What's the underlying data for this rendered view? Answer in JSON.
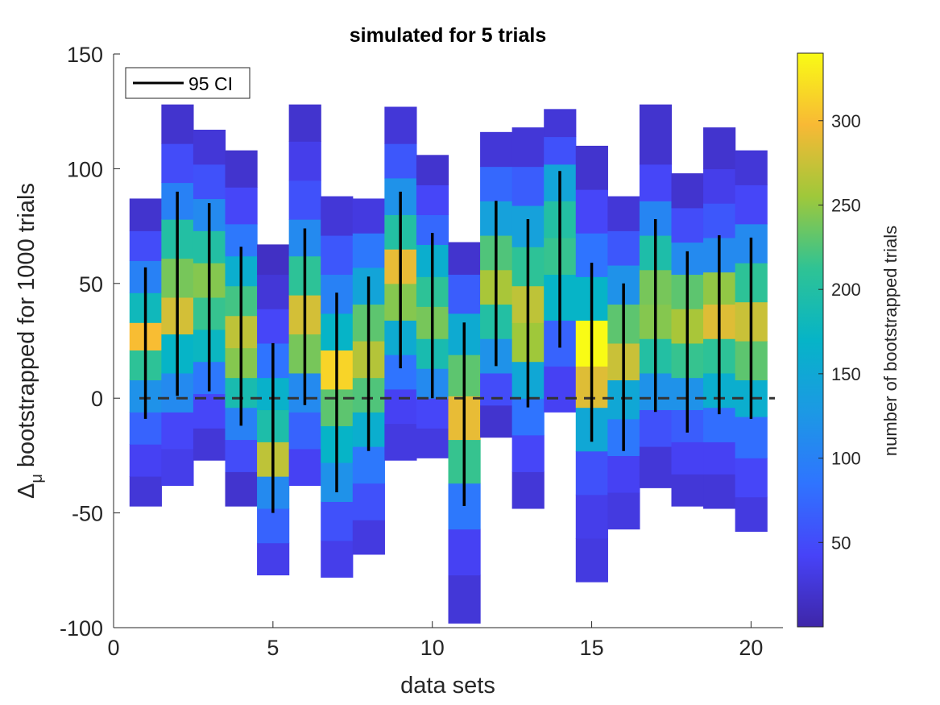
{
  "chart_data": {
    "type": "heatmap",
    "title": "simulated for 5 trials",
    "xlabel": "data sets",
    "ylabel_symbol": "Δ",
    "ylabel_subscript": "μ",
    "ylabel_text": "bootstrapped  for 1000 trials",
    "colorbar_label": "number of bootstrapped trials",
    "xlim": [
      0,
      21
    ],
    "ylim": [
      -100,
      150
    ],
    "xticks": [
      0,
      5,
      10,
      15,
      20
    ],
    "yticks": [
      -100,
      -50,
      0,
      50,
      100,
      150
    ],
    "colorbar_range": [
      0,
      340
    ],
    "colorbar_ticks": [
      50,
      100,
      150,
      200,
      250,
      300
    ],
    "legend": {
      "label": "95 CI",
      "location": "top-left"
    },
    "reference_line": {
      "y": 0,
      "style": "dashed"
    },
    "bar_width": 1,
    "datasets": [
      {
        "x": 1,
        "bins": [
          [
            -47,
            -34,
            25
          ],
          [
            -34,
            -20,
            40
          ],
          [
            -20,
            -6,
            70
          ],
          [
            -6,
            8,
            120
          ],
          [
            8,
            21,
            210
          ],
          [
            21,
            33,
            300
          ],
          [
            33,
            46,
            180
          ],
          [
            46,
            60,
            100
          ],
          [
            60,
            73,
            50
          ],
          [
            73,
            87,
            20
          ]
        ],
        "ci": [
          -9,
          57
        ]
      },
      {
        "x": 2,
        "bins": [
          [
            -38,
            -22,
            35
          ],
          [
            -22,
            -6,
            45
          ],
          [
            -6,
            11,
            110
          ],
          [
            11,
            28,
            170
          ],
          [
            28,
            44,
            280
          ],
          [
            44,
            61,
            240
          ],
          [
            61,
            78,
            200
          ],
          [
            78,
            94,
            100
          ],
          [
            94,
            111,
            50
          ],
          [
            111,
            128,
            20
          ]
        ],
        "ci": [
          1,
          90
        ]
      },
      {
        "x": 3,
        "bins": [
          [
            -27,
            -13,
            25
          ],
          [
            -13,
            2,
            45
          ],
          [
            2,
            16,
            90
          ],
          [
            16,
            30,
            175
          ],
          [
            30,
            44,
            215
          ],
          [
            44,
            59,
            245
          ],
          [
            59,
            73,
            200
          ],
          [
            73,
            87,
            110
          ],
          [
            87,
            102,
            55
          ],
          [
            102,
            117,
            25
          ]
        ],
        "ci": [
          3,
          85
        ]
      },
      {
        "x": 4,
        "bins": [
          [
            -47,
            -32,
            20
          ],
          [
            -32,
            -18,
            50
          ],
          [
            -18,
            -4,
            100
          ],
          [
            -4,
            9,
            190
          ],
          [
            9,
            22,
            245
          ],
          [
            22,
            36,
            270
          ],
          [
            36,
            49,
            220
          ],
          [
            49,
            62,
            160
          ],
          [
            62,
            76,
            90
          ],
          [
            76,
            92,
            45
          ],
          [
            92,
            108,
            20
          ]
        ],
        "ci": [
          -12,
          66
        ]
      },
      {
        "x": 5,
        "bins": [
          [
            -77,
            -63,
            35
          ],
          [
            -63,
            -48,
            70
          ],
          [
            -48,
            -34,
            110
          ],
          [
            -34,
            -19,
            270
          ],
          [
            -19,
            -5,
            195
          ],
          [
            -5,
            9,
            165
          ],
          [
            9,
            24,
            85
          ],
          [
            24,
            39,
            45
          ],
          [
            39,
            54,
            25
          ],
          [
            54,
            67,
            15
          ]
        ],
        "ci": [
          -50,
          24
        ]
      },
      {
        "x": 6,
        "bins": [
          [
            -38,
            -22,
            40
          ],
          [
            -22,
            -6,
            70
          ],
          [
            -6,
            11,
            110
          ],
          [
            11,
            28,
            240
          ],
          [
            28,
            45,
            280
          ],
          [
            45,
            62,
            210
          ],
          [
            62,
            78,
            110
          ],
          [
            78,
            95,
            55
          ],
          [
            95,
            112,
            35
          ],
          [
            112,
            128,
            20
          ]
        ],
        "ci": [
          -3,
          74
        ]
      },
      {
        "x": 7,
        "bins": [
          [
            -78,
            -62,
            35
          ],
          [
            -62,
            -45,
            55
          ],
          [
            -45,
            -28,
            120
          ],
          [
            -28,
            -12,
            170
          ],
          [
            -12,
            4,
            230
          ],
          [
            4,
            21,
            315
          ],
          [
            21,
            37,
            170
          ],
          [
            37,
            54,
            100
          ],
          [
            54,
            71,
            60
          ],
          [
            71,
            88,
            25
          ]
        ],
        "ci": [
          -41,
          46
        ]
      },
      {
        "x": 8,
        "bins": [
          [
            -68,
            -53,
            30
          ],
          [
            -53,
            -37,
            55
          ],
          [
            -37,
            -21,
            90
          ],
          [
            -21,
            -6,
            160
          ],
          [
            -6,
            9,
            225
          ],
          [
            9,
            25,
            265
          ],
          [
            25,
            41,
            230
          ],
          [
            41,
            57,
            145
          ],
          [
            57,
            72,
            90
          ],
          [
            72,
            87,
            30
          ]
        ],
        "ci": [
          -23,
          53
        ]
      },
      {
        "x": 9,
        "bins": [
          [
            -27,
            -11,
            30
          ],
          [
            -11,
            4,
            40
          ],
          [
            4,
            19,
            85
          ],
          [
            19,
            34,
            155
          ],
          [
            34,
            50,
            245
          ],
          [
            50,
            65,
            290
          ],
          [
            65,
            80,
            200
          ],
          [
            80,
            96,
            120
          ],
          [
            96,
            111,
            60
          ],
          [
            111,
            127,
            25
          ]
        ],
        "ci": [
          13,
          90
        ]
      },
      {
        "x": 10,
        "bins": [
          [
            -26,
            -13,
            30
          ],
          [
            -13,
            0,
            45
          ],
          [
            0,
            13,
            110
          ],
          [
            13,
            26,
            190
          ],
          [
            26,
            40,
            240
          ],
          [
            40,
            53,
            210
          ],
          [
            53,
            67,
            160
          ],
          [
            67,
            80,
            75
          ],
          [
            80,
            93,
            45
          ],
          [
            93,
            106,
            20
          ]
        ],
        "ci": [
          0,
          72
        ]
      },
      {
        "x": 11,
        "bins": [
          [
            -98,
            -77,
            25
          ],
          [
            -77,
            -57,
            40
          ],
          [
            -57,
            -37,
            90
          ],
          [
            -37,
            -18,
            215
          ],
          [
            -18,
            1,
            290
          ],
          [
            1,
            19,
            230
          ],
          [
            19,
            37,
            155
          ],
          [
            37,
            54,
            65
          ],
          [
            54,
            68,
            20
          ]
        ],
        "ci": [
          -47,
          33
        ]
      },
      {
        "x": 12,
        "bins": [
          [
            -17,
            -3,
            20
          ],
          [
            -3,
            11,
            50
          ],
          [
            11,
            26,
            120
          ],
          [
            26,
            41,
            200
          ],
          [
            41,
            56,
            260
          ],
          [
            56,
            71,
            225
          ],
          [
            71,
            86,
            140
          ],
          [
            86,
            101,
            75
          ],
          [
            101,
            116,
            25
          ]
        ],
        "ci": [
          14,
          86
        ]
      },
      {
        "x": 13,
        "bins": [
          [
            -48,
            -32,
            25
          ],
          [
            -32,
            -16,
            45
          ],
          [
            -16,
            0,
            85
          ],
          [
            0,
            16,
            150
          ],
          [
            16,
            33,
            255
          ],
          [
            33,
            49,
            270
          ],
          [
            49,
            66,
            210
          ],
          [
            66,
            84,
            140
          ],
          [
            84,
            101,
            65
          ],
          [
            101,
            118,
            25
          ]
        ],
        "ci": [
          -4,
          78
        ]
      },
      {
        "x": 14,
        "bins": [
          [
            -6,
            14,
            40
          ],
          [
            14,
            34,
            70
          ],
          [
            34,
            54,
            170
          ],
          [
            54,
            70,
            215
          ],
          [
            70,
            86,
            200
          ],
          [
            86,
            102,
            145
          ],
          [
            102,
            114,
            55
          ],
          [
            114,
            126,
            25
          ]
        ],
        "ci": [
          22,
          99
        ]
      },
      {
        "x": 15,
        "bins": [
          [
            -80,
            -61,
            30
          ],
          [
            -61,
            -42,
            35
          ],
          [
            -42,
            -23,
            55
          ],
          [
            -23,
            -4,
            150
          ],
          [
            -4,
            14,
            285
          ],
          [
            14,
            34,
            340
          ],
          [
            34,
            53,
            170
          ],
          [
            53,
            72,
            85
          ],
          [
            72,
            91,
            45
          ],
          [
            91,
            110,
            20
          ]
        ],
        "ci": [
          -19,
          59
        ]
      },
      {
        "x": 16,
        "bins": [
          [
            -57,
            -41,
            30
          ],
          [
            -41,
            -25,
            40
          ],
          [
            -25,
            -9,
            90
          ],
          [
            -9,
            8,
            150
          ],
          [
            8,
            24,
            275
          ],
          [
            24,
            41,
            230
          ],
          [
            41,
            58,
            120
          ],
          [
            58,
            73,
            60
          ],
          [
            73,
            88,
            25
          ]
        ],
        "ci": [
          -23,
          50
        ]
      },
      {
        "x": 17,
        "bins": [
          [
            -39,
            -21,
            25
          ],
          [
            -21,
            -5,
            55
          ],
          [
            -5,
            11,
            120
          ],
          [
            11,
            26,
            200
          ],
          [
            26,
            41,
            245
          ],
          [
            41,
            56,
            240
          ],
          [
            56,
            71,
            195
          ],
          [
            71,
            86,
            105
          ],
          [
            86,
            102,
            45
          ],
          [
            102,
            128,
            20
          ]
        ],
        "ci": [
          -6,
          78
        ]
      },
      {
        "x": 18,
        "bins": [
          [
            -47,
            -33,
            25
          ],
          [
            -33,
            -19,
            40
          ],
          [
            -19,
            -5,
            65
          ],
          [
            -5,
            9,
            120
          ],
          [
            9,
            24,
            215
          ],
          [
            24,
            39,
            260
          ],
          [
            39,
            54,
            230
          ],
          [
            54,
            68,
            110
          ],
          [
            68,
            83,
            50
          ],
          [
            83,
            98,
            20
          ]
        ],
        "ci": [
          -15,
          64
        ]
      },
      {
        "x": 19,
        "bins": [
          [
            -48,
            -33,
            25
          ],
          [
            -33,
            -19,
            40
          ],
          [
            -19,
            -4,
            80
          ],
          [
            -4,
            11,
            160
          ],
          [
            11,
            26,
            210
          ],
          [
            26,
            41,
            285
          ],
          [
            41,
            55,
            250
          ],
          [
            55,
            70,
            110
          ],
          [
            70,
            85,
            60
          ],
          [
            85,
            100,
            35
          ],
          [
            100,
            118,
            20
          ]
        ],
        "ci": [
          -7,
          71
        ]
      },
      {
        "x": 20,
        "bins": [
          [
            -58,
            -43,
            30
          ],
          [
            -43,
            -26,
            45
          ],
          [
            -26,
            -8,
            80
          ],
          [
            -8,
            8,
            160
          ],
          [
            8,
            25,
            230
          ],
          [
            25,
            42,
            275
          ],
          [
            42,
            59,
            210
          ],
          [
            59,
            76,
            110
          ],
          [
            76,
            93,
            45
          ],
          [
            93,
            108,
            25
          ]
        ],
        "ci": [
          -9,
          70
        ]
      }
    ]
  }
}
